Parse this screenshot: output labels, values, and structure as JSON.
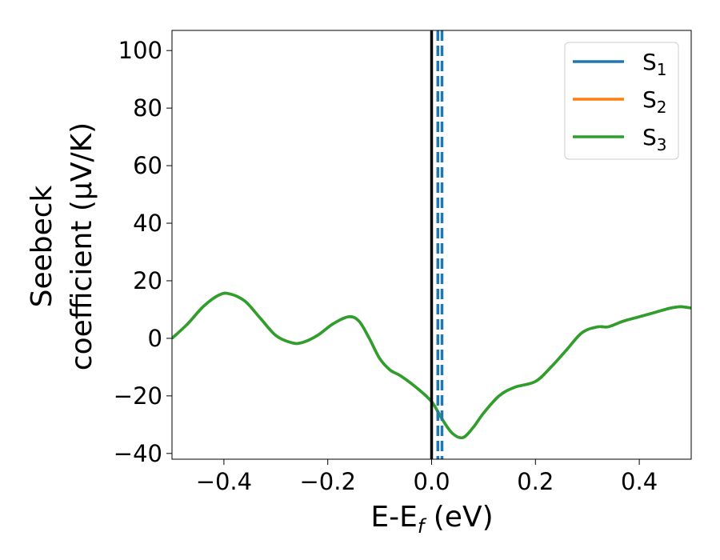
{
  "chart_data": {
    "type": "line",
    "xlabel": "E-E",
    "xlabel_sub": "f",
    "xlabel_unit": " (eV)",
    "ylabel_line1": "Seebeck",
    "ylabel_line2": "coefficient  (μV/K)",
    "xlim": [
      -0.5,
      0.5
    ],
    "ylim": [
      -42,
      107
    ],
    "xticks": [
      -0.4,
      -0.2,
      0.0,
      0.2,
      0.4
    ],
    "xtick_labels": [
      "−0.4",
      "−0.2",
      "0.0",
      "0.2",
      "0.4"
    ],
    "yticks": [
      -40,
      -20,
      0,
      20,
      40,
      60,
      80,
      100
    ],
    "ytick_labels": [
      "−40",
      "−20",
      "0",
      "20",
      "40",
      "60",
      "80",
      "100"
    ],
    "vline_solid": {
      "x": 0.0,
      "color": "#000000"
    },
    "vlines_dashed": [
      {
        "x": 0.012,
        "color": "#1f77b4"
      },
      {
        "x": 0.02,
        "color": "#1f77b4"
      }
    ],
    "legend": {
      "placement": "top-right",
      "entries": [
        {
          "label": "S",
          "sub": "1",
          "color": "#1f77b4"
        },
        {
          "label": "S",
          "sub": "2",
          "color": "#ff7f0e"
        },
        {
          "label": "S",
          "sub": "3",
          "color": "#2ca02c"
        }
      ]
    },
    "series": [
      {
        "color": "#1f77b4",
        "x": [
          -0.5,
          -0.47,
          -0.44,
          -0.41,
          -0.39,
          -0.36,
          -0.33,
          -0.3,
          -0.27,
          -0.25,
          -0.22,
          -0.19,
          -0.16,
          -0.14,
          -0.12,
          -0.1,
          -0.08,
          -0.06,
          -0.03,
          0.0,
          0.02,
          0.04,
          0.06,
          0.08,
          0.1,
          0.13,
          0.16,
          0.2,
          0.23,
          0.26,
          0.29,
          0.32,
          0.34,
          0.37,
          0.4,
          0.43,
          0.46,
          0.48,
          0.5
        ],
        "y": [
          0,
          5,
          11,
          15,
          15.5,
          13,
          7,
          1,
          -1.5,
          -1.5,
          1,
          5,
          7.5,
          6,
          0,
          -7,
          -11,
          -13,
          -17,
          -22,
          -28,
          -33,
          -34.5,
          -31,
          -26,
          -20,
          -17,
          -15,
          -10,
          -4,
          2,
          4,
          4,
          6,
          7.5,
          9,
          10.5,
          11,
          10.5
        ]
      },
      {
        "color": "#ff7f0e",
        "x": [
          -0.5,
          -0.47,
          -0.44,
          -0.41,
          -0.39,
          -0.36,
          -0.33,
          -0.3,
          -0.27,
          -0.25,
          -0.22,
          -0.19,
          -0.16,
          -0.14,
          -0.12,
          -0.1,
          -0.08,
          -0.06,
          -0.03,
          0.0,
          0.02,
          0.04,
          0.06,
          0.08,
          0.1,
          0.13,
          0.16,
          0.2,
          0.23,
          0.26,
          0.29,
          0.32,
          0.34,
          0.37,
          0.4,
          0.43,
          0.46,
          0.48,
          0.5
        ],
        "y": [
          0,
          5,
          11,
          15,
          15.5,
          13,
          7,
          1,
          -1.5,
          -1.5,
          1,
          5,
          7.5,
          6,
          0,
          -7,
          -11,
          -13,
          -17,
          -22,
          -28,
          -33,
          -34.5,
          -31,
          -26,
          -20,
          -17,
          -15,
          -10,
          -4,
          2,
          4,
          4,
          6,
          7.5,
          9,
          10.5,
          11,
          10.5
        ]
      },
      {
        "color": "#2ca02c",
        "x": [
          -0.5,
          -0.47,
          -0.44,
          -0.41,
          -0.39,
          -0.36,
          -0.33,
          -0.3,
          -0.27,
          -0.25,
          -0.22,
          -0.19,
          -0.16,
          -0.14,
          -0.12,
          -0.1,
          -0.08,
          -0.06,
          -0.03,
          0.0,
          0.02,
          0.04,
          0.06,
          0.08,
          0.1,
          0.13,
          0.16,
          0.2,
          0.23,
          0.26,
          0.29,
          0.32,
          0.34,
          0.37,
          0.4,
          0.43,
          0.46,
          0.48,
          0.5
        ],
        "y": [
          0,
          5,
          11,
          15,
          15.5,
          13,
          7,
          1,
          -1.5,
          -1.5,
          1,
          5,
          7.5,
          6,
          0,
          -7,
          -11,
          -13,
          -17,
          -22,
          -28,
          -33,
          -34.5,
          -31,
          -26,
          -20,
          -17,
          -15,
          -10,
          -4,
          2,
          4,
          4,
          6,
          7.5,
          9,
          10.5,
          11,
          10.5
        ]
      }
    ]
  }
}
